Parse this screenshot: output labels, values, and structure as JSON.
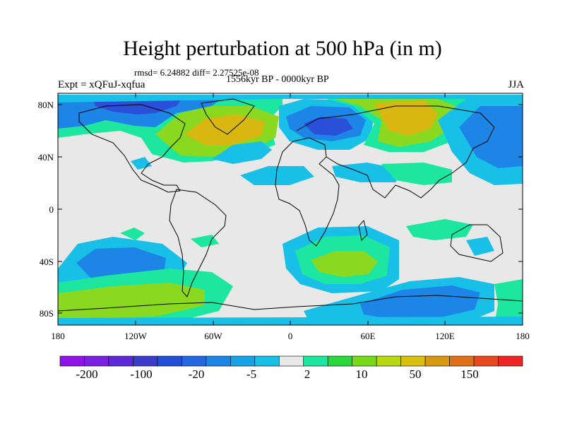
{
  "title": "Height perturbation at 500 hPa (in m)",
  "stats_line": "rmsd= 6.24882 diff= 2.27525e-08",
  "period_line": "1556kyr BP - 0000kyr BP",
  "experiment": "Expt = xQFuJ-xqfua",
  "season": "JJA",
  "axes": {
    "lat_ticks": [
      "80N",
      "40N",
      "0",
      "40S",
      "80S"
    ],
    "lon_ticks": [
      "180",
      "120W",
      "60W",
      "0",
      "60E",
      "120E",
      "180"
    ]
  },
  "colorbar": {
    "colors": [
      "#8f12e8",
      "#7a1ee0",
      "#5e28d8",
      "#3c3ccc",
      "#1f4fd6",
      "#2368e0",
      "#1d85e6",
      "#14a3e6",
      "#18c0e8",
      "#e8e8e8",
      "#1de6a0",
      "#28d83c",
      "#78d81a",
      "#b8d812",
      "#d8c00e",
      "#d89810",
      "#e07018",
      "#e84820",
      "#ee2424"
    ],
    "labels": [
      "-200",
      "-100",
      "-20",
      "-5",
      "2",
      "10",
      "50",
      "150"
    ]
  },
  "colors": {
    "neutral": "#e8e8e8",
    "light_blue": "#18c0e8",
    "mid_blue": "#1d85e6",
    "dark_blue": "#2a4fd8",
    "green": "#1de6a0",
    "yellow_green": "#8ad820",
    "gold": "#d8b810"
  }
}
